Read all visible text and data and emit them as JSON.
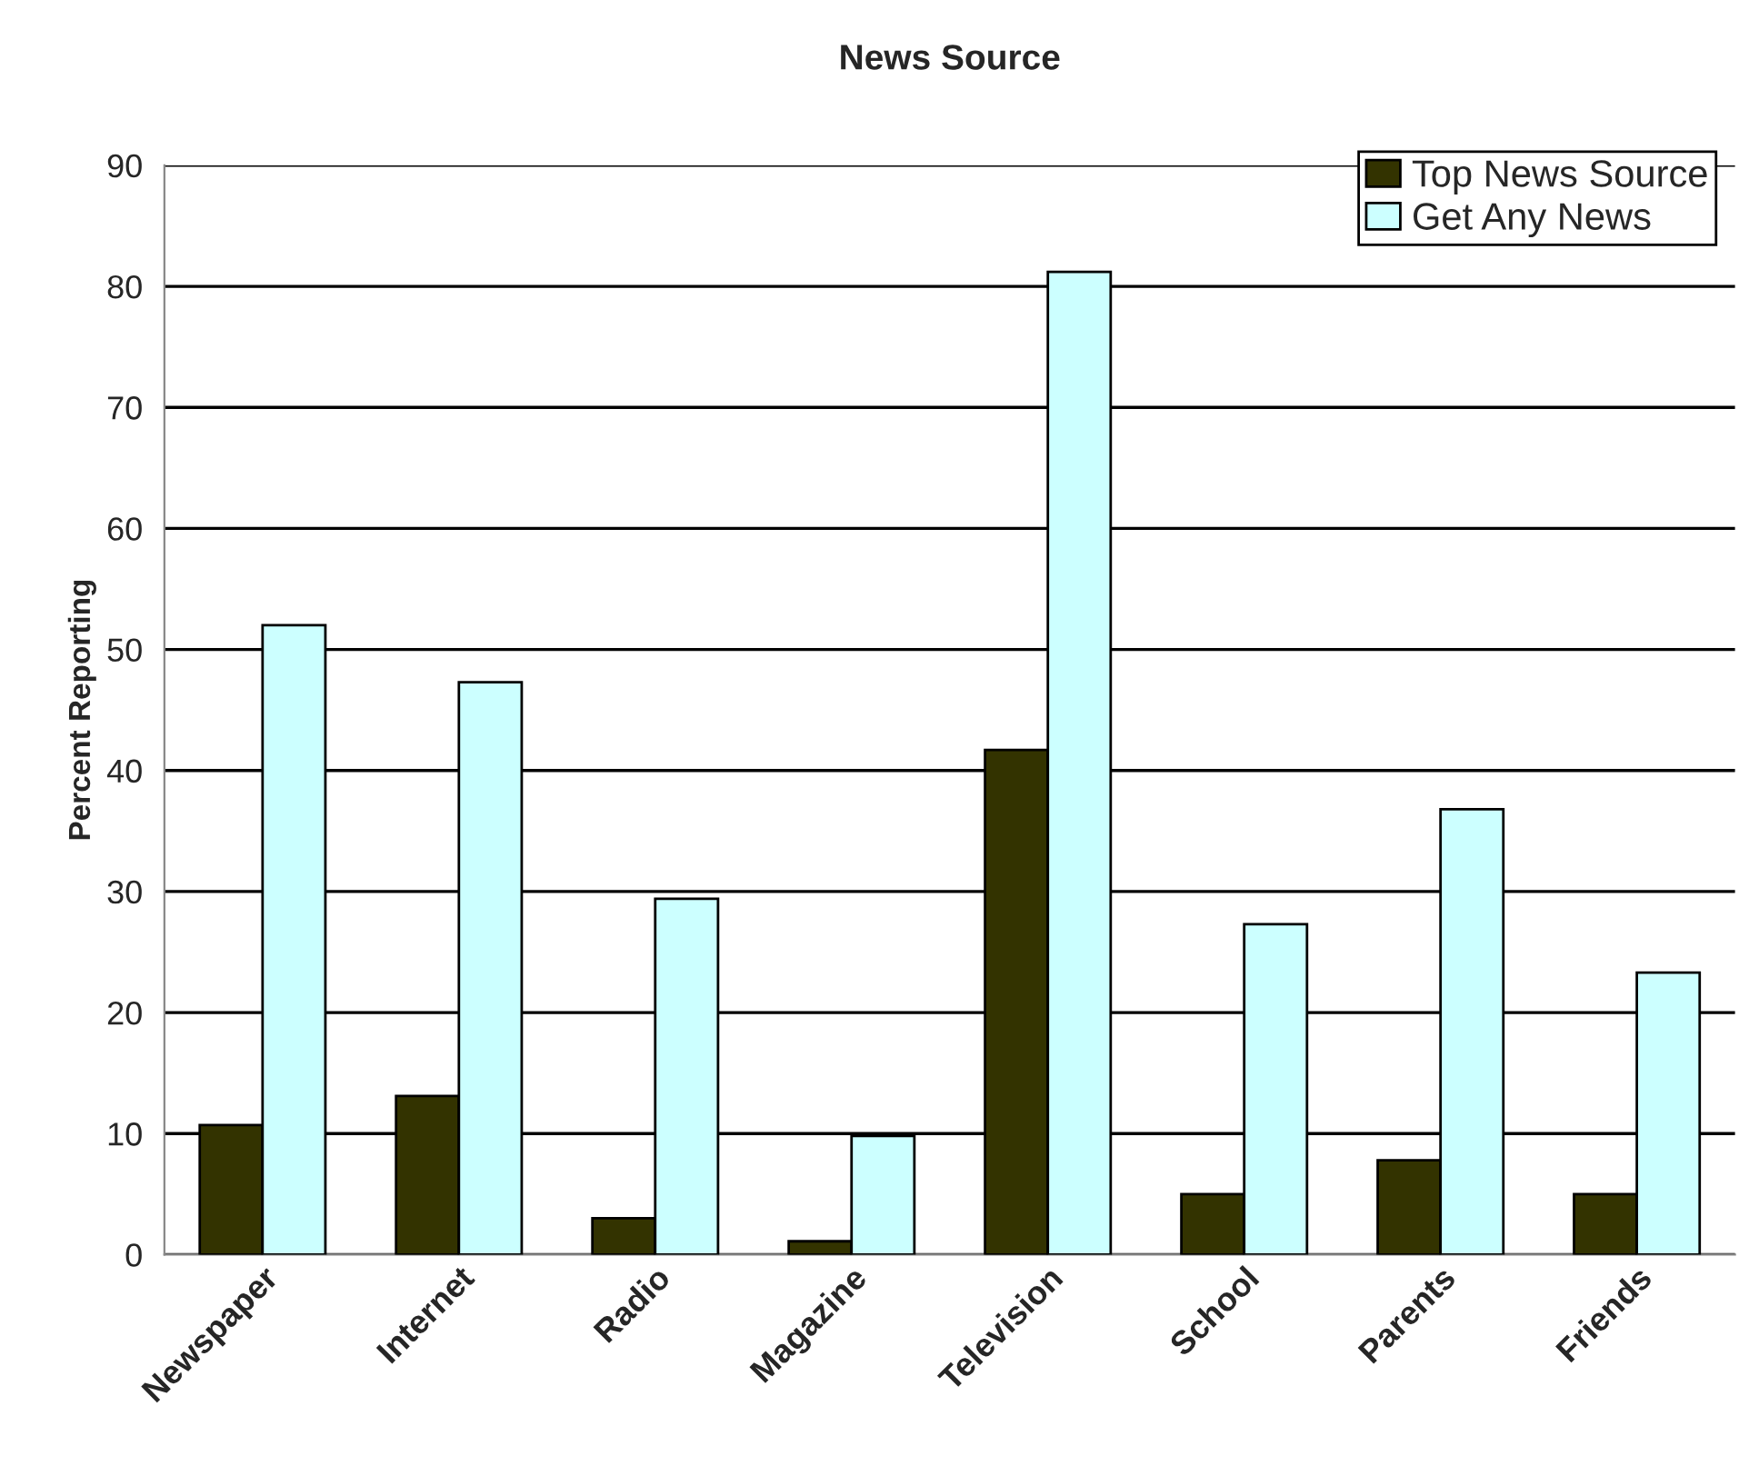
{
  "chart_data": {
    "type": "bar",
    "title": "News Source",
    "ylabel": "Percent Reporting",
    "categories": [
      "Newspaper",
      "Internet",
      "Radio",
      "Magazine",
      "Television",
      "School",
      "Parents",
      "Friends"
    ],
    "series": [
      {
        "name": "Top News Source",
        "color": "#333300",
        "values": [
          10.7,
          13.1,
          3.0,
          1.1,
          41.7,
          5.0,
          7.8,
          5.0
        ]
      },
      {
        "name": "Get Any News",
        "color": "#ccffff",
        "values": [
          52.0,
          47.3,
          29.4,
          9.8,
          81.2,
          27.3,
          36.8,
          23.3
        ]
      }
    ],
    "ylim": [
      0,
      90
    ],
    "yticks": [
      0,
      10,
      20,
      30,
      40,
      50,
      60,
      70,
      80,
      90
    ],
    "grid": "y",
    "legend": "top right"
  }
}
